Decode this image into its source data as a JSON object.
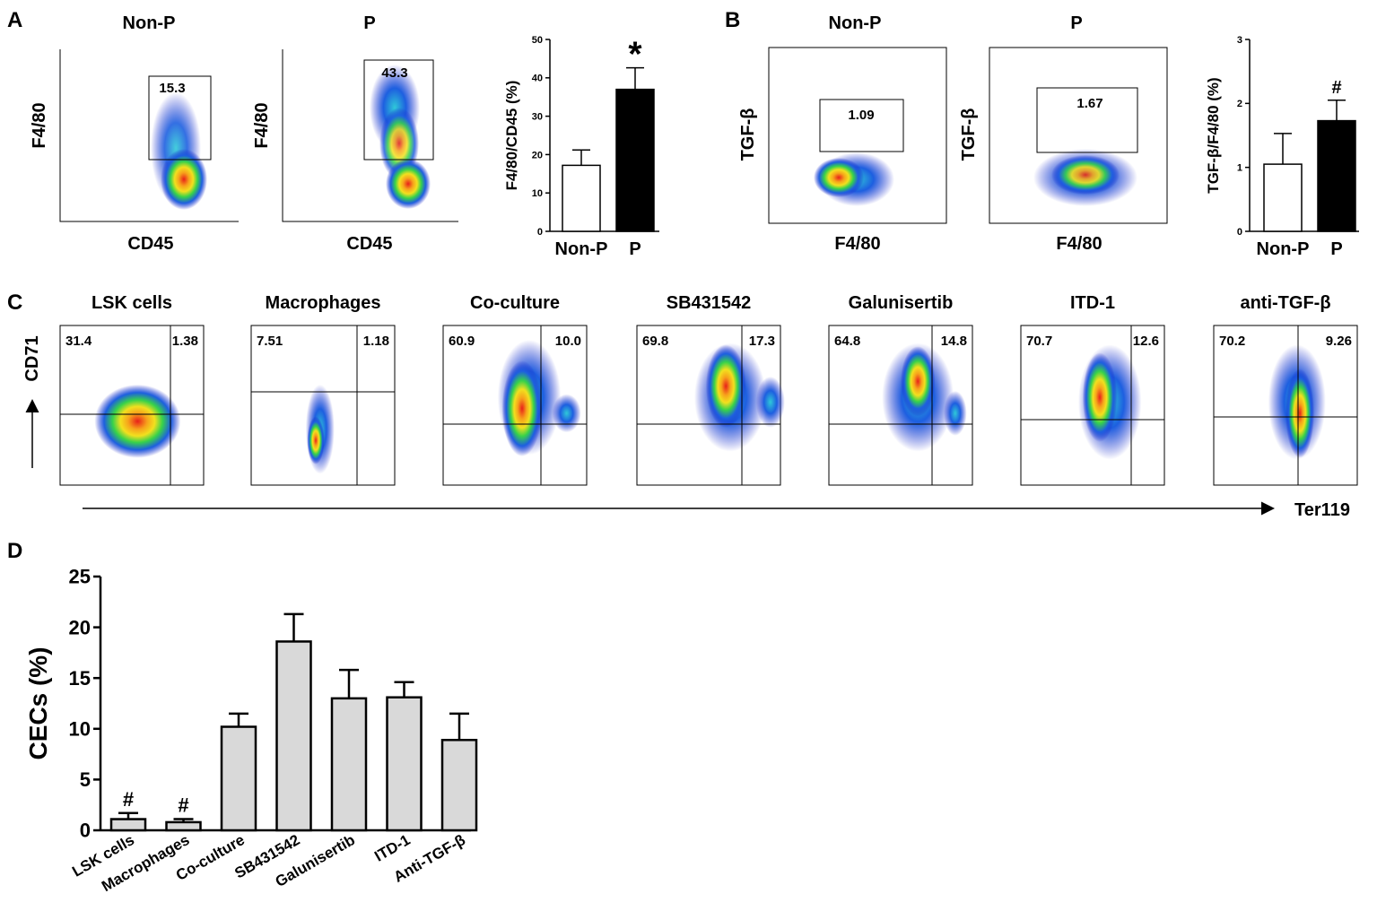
{
  "panel_letters": [
    "A",
    "B",
    "C",
    "D"
  ],
  "panel_a": {
    "plots": [
      {
        "title": "Non-P",
        "xlabel": "CD45",
        "ylabel": "F4/80",
        "gate_value": "15.3"
      },
      {
        "title": "P",
        "xlabel": "CD45",
        "ylabel": "F4/80",
        "gate_value": "43.3"
      }
    ]
  },
  "panel_b": {
    "plots": [
      {
        "title": "Non-P",
        "xlabel": "F4/80",
        "ylabel": "TGF-β",
        "gate_value": "1.09"
      },
      {
        "title": "P",
        "xlabel": "F4/80",
        "ylabel": "TGF-β",
        "gate_value": "1.67"
      }
    ]
  },
  "panel_c": {
    "ylabel": "CD71",
    "xlabel": "Ter119",
    "plots": [
      {
        "title": "LSK cells",
        "ul": "31.4",
        "ur": "1.38"
      },
      {
        "title": "Macrophages",
        "ul": "7.51",
        "ur": "1.18"
      },
      {
        "title": "Co-culture",
        "ul": "60.9",
        "ur": "10.0"
      },
      {
        "title": "SB431542",
        "ul": "69.8",
        "ur": "17.3"
      },
      {
        "title": "Galunisertib",
        "ul": "64.8",
        "ur": "14.8"
      },
      {
        "title": "ITD-1",
        "ul": "70.7",
        "ur": "12.6"
      },
      {
        "title": "anti-TGF-β",
        "ul": "70.2",
        "ur": "9.26"
      }
    ]
  },
  "colors": {
    "bar_open": "#ffffff",
    "bar_filled": "#000000",
    "bar_gray": "#d9d9d9",
    "axis": "#000000"
  },
  "chart_data": [
    {
      "id": "A",
      "type": "bar",
      "categories": [
        "Non-P",
        "P"
      ],
      "values": [
        17.2,
        37.0
      ],
      "errors": [
        4.0,
        5.6
      ],
      "fills": [
        "#ffffff",
        "#000000"
      ],
      "ylabel": "F4/80/CD45 (%)",
      "ylim": [
        0,
        50
      ],
      "yticks": [
        "0",
        "10",
        "20",
        "30",
        "40",
        "50"
      ],
      "annotations": [
        {
          "category": "P",
          "text": "*"
        }
      ]
    },
    {
      "id": "B",
      "type": "bar",
      "categories": [
        "Non-P",
        "P"
      ],
      "values": [
        1.05,
        1.73
      ],
      "errors": [
        0.48,
        0.32
      ],
      "fills": [
        "#ffffff",
        "#000000"
      ],
      "ylabel": "TGF-β/F4/80 (%)",
      "ylim": [
        0,
        3
      ],
      "yticks": [
        "0",
        "1",
        "2",
        "3"
      ],
      "annotations": [
        {
          "category": "P",
          "text": "#"
        }
      ]
    },
    {
      "id": "D",
      "type": "bar",
      "categories": [
        "LSK cells",
        "Macrophages",
        "Co-culture",
        "SB431542",
        "Galunisertib",
        "ITD-1",
        "Anti-TGF-β"
      ],
      "values": [
        1.1,
        0.8,
        10.2,
        18.6,
        13.0,
        13.1,
        8.9
      ],
      "errors": [
        0.6,
        0.3,
        1.3,
        2.7,
        2.8,
        1.5,
        2.6
      ],
      "fills": [
        "#d9d9d9",
        "#d9d9d9",
        "#d9d9d9",
        "#d9d9d9",
        "#d9d9d9",
        "#d9d9d9",
        "#d9d9d9"
      ],
      "ylabel": "CECs (%)",
      "ylim": [
        0,
        25
      ],
      "yticks": [
        "0",
        "5",
        "10",
        "15",
        "20",
        "25"
      ],
      "annotations": [
        {
          "category": "LSK cells",
          "text": "#"
        },
        {
          "category": "Macrophages",
          "text": "#"
        }
      ]
    }
  ]
}
